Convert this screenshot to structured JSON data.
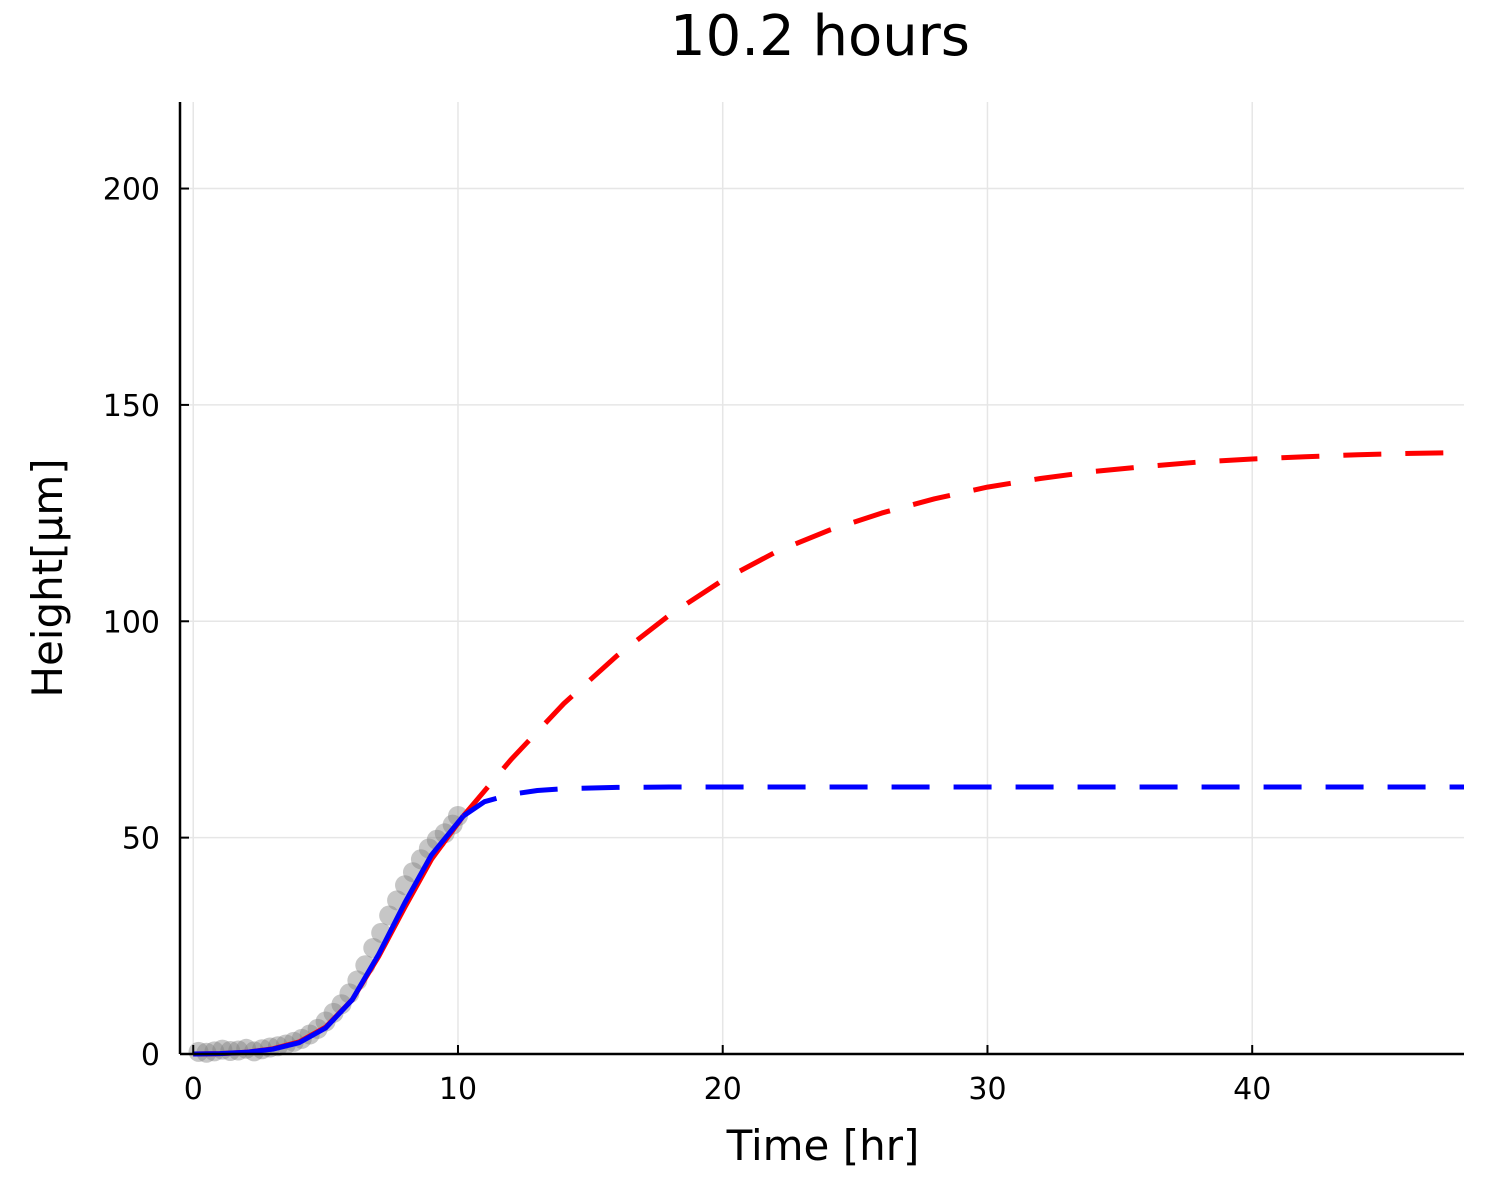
{
  "chart_data": {
    "type": "line",
    "title": "10.2 hours",
    "xlabel": "Time [hr]",
    "ylabel": "Height[μm]",
    "xlim": [
      -0.5,
      48
    ],
    "ylim": [
      0,
      220
    ],
    "xticks": [
      0,
      10,
      20,
      30,
      40
    ],
    "yticks": [
      0,
      50,
      100,
      150,
      200
    ],
    "grid": true,
    "legend": "none",
    "colors": {
      "observed": "#808080",
      "model_red": "#ff0000",
      "model_blue": "#0000ff"
    },
    "observed": {
      "x": [
        0.2,
        0.5,
        0.8,
        1.1,
        1.4,
        1.7,
        2.0,
        2.3,
        2.6,
        2.9,
        3.2,
        3.5,
        3.8,
        4.1,
        4.4,
        4.7,
        5.0,
        5.3,
        5.6,
        5.9,
        6.2,
        6.5,
        6.8,
        7.1,
        7.4,
        7.7,
        8.0,
        8.3,
        8.6,
        8.9,
        9.2,
        9.5,
        9.8,
        10.0
      ],
      "y": [
        0.5,
        0.3,
        0.6,
        1.0,
        0.7,
        0.8,
        1.2,
        0.6,
        1.1,
        1.5,
        1.8,
        2.2,
        2.8,
        3.5,
        4.5,
        5.8,
        7.5,
        9.5,
        11.5,
        14.0,
        17.0,
        20.5,
        24.5,
        28.0,
        32.0,
        35.5,
        39.0,
        42.0,
        45.0,
        47.5,
        49.5,
        51.0,
        53.0,
        55.0
      ]
    },
    "series": [
      {
        "color": "#ff0000",
        "style": "solid",
        "x": [
          0,
          1,
          2,
          3,
          4,
          5,
          6,
          7,
          8,
          9,
          10.2
        ],
        "y": [
          0.0,
          0.1,
          0.4,
          1.2,
          2.8,
          6.2,
          12.5,
          22.5,
          34.0,
          45.0,
          55.0
        ]
      },
      {
        "color": "#0000ff",
        "style": "solid",
        "x": [
          0,
          1,
          2,
          3,
          4,
          5,
          6,
          7,
          8,
          9,
          10.2
        ],
        "y": [
          0.0,
          0.1,
          0.4,
          1.1,
          2.6,
          6.0,
          12.5,
          23.0,
          35.0,
          46.0,
          55.0
        ]
      },
      {
        "color": "#ff0000",
        "style": "dashed",
        "x": [
          10.2,
          12,
          14,
          16,
          18,
          20,
          22,
          24,
          26,
          28,
          30,
          32,
          34,
          36,
          38,
          40,
          42,
          44,
          46,
          48
        ],
        "y": [
          55.0,
          68.0,
          81.0,
          92.0,
          101.5,
          109.5,
          116.0,
          121.0,
          125.0,
          128.3,
          131.0,
          133.0,
          134.6,
          135.8,
          136.8,
          137.5,
          138.0,
          138.5,
          138.8,
          139.0
        ]
      },
      {
        "color": "#0000ff",
        "style": "dashed",
        "x": [
          10.2,
          11,
          12,
          13,
          14,
          16,
          18,
          20,
          25,
          30,
          40,
          48
        ],
        "y": [
          55.0,
          58.3,
          60.0,
          60.9,
          61.3,
          61.6,
          61.7,
          61.7,
          61.7,
          61.7,
          61.7,
          61.7
        ]
      }
    ]
  }
}
